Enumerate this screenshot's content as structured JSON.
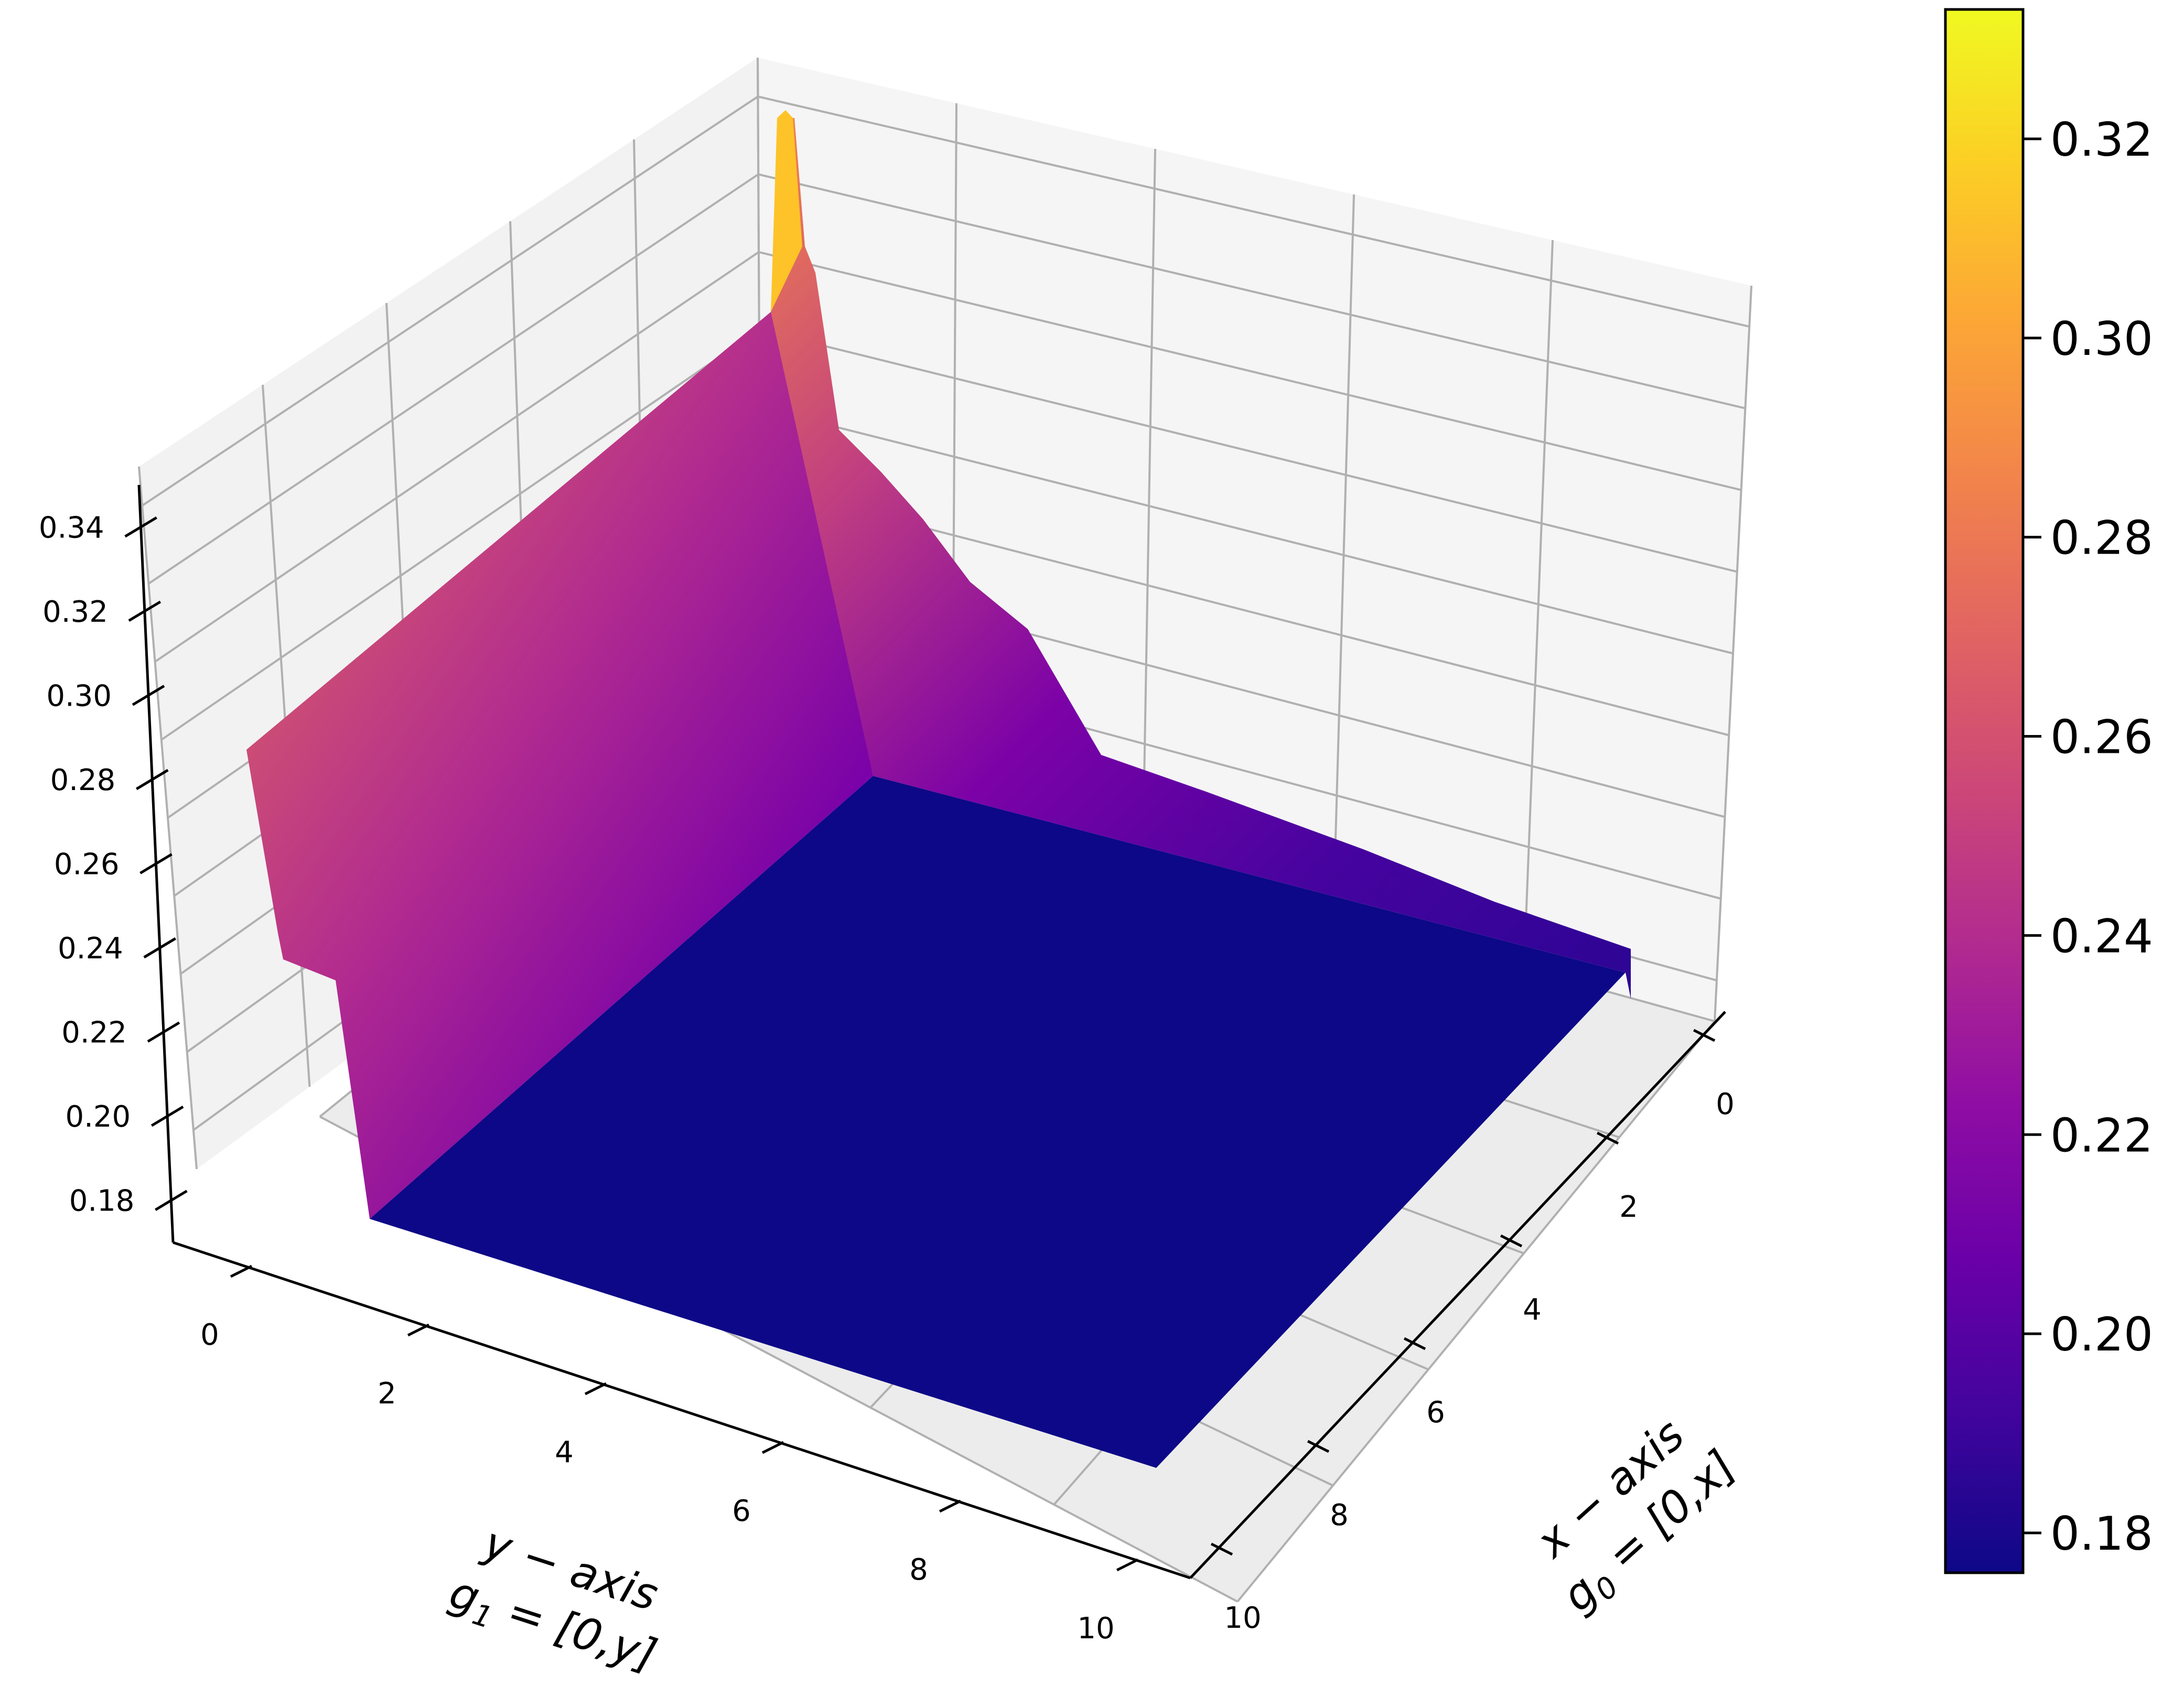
{
  "chart_data": {
    "type": "surface3d",
    "colormap": "plasma",
    "grid": true,
    "x_axis": {
      "label_line1": "x − axis",
      "label_line2_base": "g",
      "label_line2_sub": "0",
      "label_line2_rest": " = [0,x]",
      "range": [
        0,
        10
      ],
      "ticks": [
        0,
        2,
        4,
        6,
        8,
        10
      ],
      "tick_labels": [
        "0",
        "2",
        "4",
        "6",
        "8",
        "10"
      ]
    },
    "y_axis": {
      "label_line1": "y − axis",
      "label_line2_base": "g",
      "label_line2_sub": "1",
      "label_line2_rest": " = [0,y]",
      "range": [
        0,
        10
      ],
      "ticks": [
        0,
        2,
        4,
        6,
        8,
        10
      ],
      "tick_labels": [
        "0",
        "2",
        "4",
        "6",
        "8",
        "10"
      ]
    },
    "z_axis": {
      "range": [
        0.17,
        0.35
      ],
      "ticks": [
        0.18,
        0.2,
        0.22,
        0.24,
        0.26,
        0.28,
        0.3,
        0.32,
        0.34
      ],
      "tick_labels": [
        "0.18",
        "0.20",
        "0.22",
        "0.24",
        "0.26",
        "0.28",
        "0.30",
        "0.32",
        "0.34"
      ]
    },
    "colorbar": {
      "range": [
        0.176,
        0.333
      ],
      "ticks": [
        0.18,
        0.2,
        0.22,
        0.24,
        0.26,
        0.28,
        0.3,
        0.32
      ],
      "tick_labels": [
        "0.18",
        "0.20",
        "0.22",
        "0.24",
        "0.26",
        "0.28",
        "0.30",
        "0.32"
      ],
      "placement": "right"
    },
    "surface": {
      "description_points": [
        {
          "x": 0,
          "y": 0,
          "z": 0.333
        },
        {
          "x": 0,
          "y": 0.1,
          "z": 0.3
        },
        {
          "x": 0.5,
          "y": 0,
          "z": 0.24
        },
        {
          "x": 1,
          "y": 0,
          "z": 0.215
        },
        {
          "x": 2,
          "y": 0,
          "z": 0.2
        },
        {
          "x": 5,
          "y": 0,
          "z": 0.19
        },
        {
          "x": 10,
          "y": 0,
          "z": 0.19
        },
        {
          "x": 0,
          "y": 2,
          "z": 0.29
        },
        {
          "x": 0,
          "y": 5,
          "z": 0.285
        },
        {
          "x": 0,
          "y": 10,
          "z": 0.284
        },
        {
          "x": 10,
          "y": 10,
          "z": 0.176
        },
        {
          "x": 5,
          "y": 5,
          "z": 0.176
        }
      ]
    }
  }
}
